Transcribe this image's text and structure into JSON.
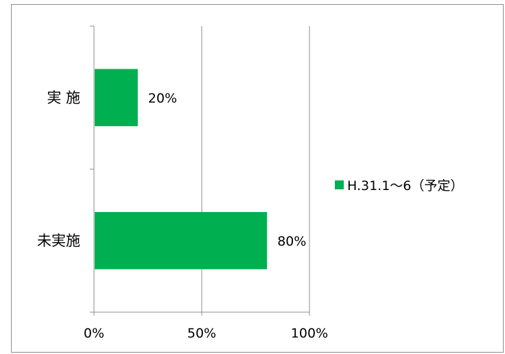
{
  "chart_data": {
    "type": "bar",
    "orientation": "horizontal",
    "categories": [
      "実 施",
      "未実施"
    ],
    "series": [
      {
        "name": "H.31.1～6（予定）",
        "values": [
          20,
          80
        ],
        "color": "#00b050"
      }
    ],
    "data_labels": [
      "20%",
      "80%"
    ],
    "x_ticks": [
      "0%",
      "50%",
      "100%"
    ],
    "xlim": [
      0,
      100
    ],
    "grid": "vertical major gridlines on",
    "legend_position": "right"
  }
}
